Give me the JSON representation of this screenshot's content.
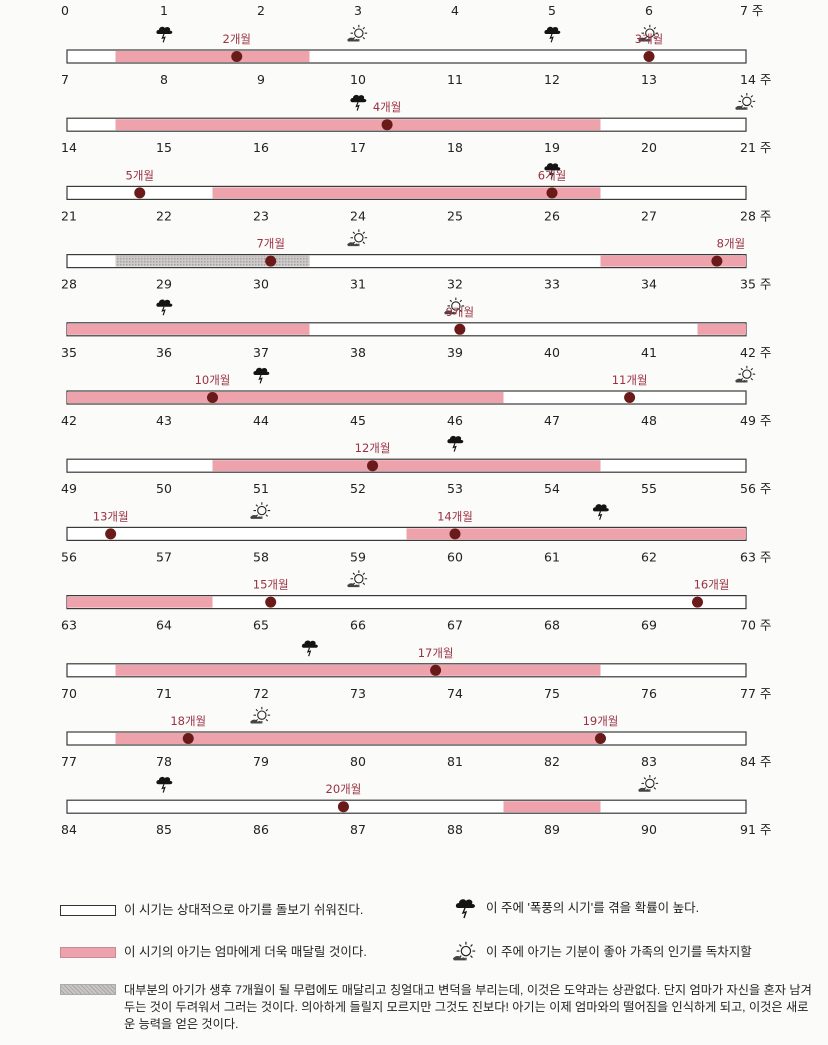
{
  "diagram": {
    "week_unit": "주",
    "rows": [
      {
        "start": 0,
        "end": 7,
        "ticks": [
          "0",
          "1",
          "2",
          "3",
          "4",
          "5",
          "6",
          "7 주"
        ],
        "bar": false,
        "segments": [],
        "markers": [],
        "storms": [],
        "suns": []
      },
      {
        "start": 7,
        "end": 14,
        "ticks": [
          "7",
          "8",
          "9",
          "10",
          "11",
          "12",
          "13",
          "14 주"
        ],
        "bar": true,
        "segments": [
          {
            "from": 7.5,
            "to": 9.5,
            "kind": "clingy"
          }
        ],
        "markers": [
          {
            "week": 8.75,
            "label": "2개월"
          },
          {
            "week": 13,
            "label": "3개월"
          }
        ],
        "storms": [
          8,
          12
        ],
        "suns": [
          10,
          13
        ]
      },
      {
        "start": 14,
        "end": 21,
        "ticks": [
          "14",
          "15",
          "16",
          "17",
          "18",
          "19",
          "20",
          "21 주"
        ],
        "bar": true,
        "segments": [
          {
            "from": 14.5,
            "to": 19.5,
            "kind": "clingy"
          }
        ],
        "markers": [
          {
            "week": 17.3,
            "label": "4개월"
          }
        ],
        "storms": [
          17
        ],
        "suns": [
          21
        ]
      },
      {
        "start": 21,
        "end": 28,
        "ticks": [
          "21",
          "22",
          "23",
          "24",
          "25",
          "26",
          "27",
          "28 주"
        ],
        "bar": true,
        "segments": [
          {
            "from": 22.5,
            "to": 26.5,
            "kind": "clingy"
          }
        ],
        "markers": [
          {
            "week": 21.75,
            "label": "5개월"
          },
          {
            "week": 26,
            "label": "6개월"
          }
        ],
        "storms": [
          26
        ],
        "suns": []
      },
      {
        "start": 28,
        "end": 35,
        "ticks": [
          "28",
          "29",
          "30",
          "31",
          "32",
          "33",
          "34",
          "35 주"
        ],
        "bar": true,
        "segments": [
          {
            "from": 28.5,
            "to": 30.5,
            "kind": "normal-clingy"
          },
          {
            "from": 33.5,
            "to": 35,
            "kind": "clingy"
          }
        ],
        "markers": [
          {
            "week": 30.1,
            "label": "7개월"
          },
          {
            "week": 34.7,
            "label": "8개월"
          }
        ],
        "storms": [],
        "suns": [
          31
        ]
      },
      {
        "start": 35,
        "end": 42,
        "ticks": [
          "35",
          "36",
          "37",
          "38",
          "39",
          "40",
          "41",
          "42 주"
        ],
        "bar": true,
        "segments": [
          {
            "from": 35,
            "to": 37.5,
            "kind": "clingy"
          },
          {
            "from": 41.5,
            "to": 42,
            "kind": "clingy"
          }
        ],
        "markers": [
          {
            "week": 39.05,
            "label": "9개월"
          }
        ],
        "storms": [
          36
        ],
        "suns": [
          39
        ]
      },
      {
        "start": 42,
        "end": 49,
        "ticks": [
          "42",
          "43",
          "44",
          "45",
          "46",
          "47",
          "48",
          "49 주"
        ],
        "bar": true,
        "segments": [
          {
            "from": 42,
            "to": 46.5,
            "kind": "clingy"
          }
        ],
        "markers": [
          {
            "week": 43.5,
            "label": "10개월"
          },
          {
            "week": 47.8,
            "label": "11개월"
          }
        ],
        "storms": [
          44
        ],
        "suns": [
          49
        ]
      },
      {
        "start": 49,
        "end": 56,
        "ticks": [
          "49",
          "50",
          "51",
          "52",
          "53",
          "54",
          "55",
          "56 주"
        ],
        "bar": true,
        "segments": [
          {
            "from": 50.5,
            "to": 54.5,
            "kind": "clingy"
          }
        ],
        "markers": [
          {
            "week": 52.15,
            "label": "12개월"
          }
        ],
        "storms": [
          53
        ],
        "suns": []
      },
      {
        "start": 56,
        "end": 63,
        "ticks": [
          "56",
          "57",
          "58",
          "59",
          "60",
          "61",
          "62",
          "63 주"
        ],
        "bar": true,
        "segments": [
          {
            "from": 59.5,
            "to": 63,
            "kind": "clingy"
          }
        ],
        "markers": [
          {
            "week": 56.45,
            "label": "13개월"
          },
          {
            "week": 60,
            "label": "14개월"
          }
        ],
        "storms": [
          61.5
        ],
        "suns": [
          58
        ]
      },
      {
        "start": 63,
        "end": 70,
        "ticks": [
          "63",
          "64",
          "65",
          "66",
          "67",
          "68",
          "69",
          "70 주"
        ],
        "bar": true,
        "segments": [
          {
            "from": 63,
            "to": 64.5,
            "kind": "clingy"
          }
        ],
        "markers": [
          {
            "week": 65.1,
            "label": "15개월"
          },
          {
            "week": 69.5,
            "label": "16개월"
          }
        ],
        "storms": [],
        "suns": [
          66
        ]
      },
      {
        "start": 70,
        "end": 77,
        "ticks": [
          "70",
          "71",
          "72",
          "73",
          "74",
          "75",
          "76",
          "77 주"
        ],
        "bar": true,
        "segments": [
          {
            "from": 70.5,
            "to": 75.5,
            "kind": "clingy"
          }
        ],
        "markers": [
          {
            "week": 73.8,
            "label": "17개월"
          }
        ],
        "storms": [
          72.5
        ],
        "suns": []
      },
      {
        "start": 77,
        "end": 84,
        "ticks": [
          "77",
          "78",
          "79",
          "80",
          "81",
          "82",
          "83",
          "84 주"
        ],
        "bar": true,
        "segments": [
          {
            "from": 77.5,
            "to": 82.5,
            "kind": "clingy"
          }
        ],
        "markers": [
          {
            "week": 78.25,
            "label": "18개월"
          },
          {
            "week": 82.5,
            "label": "19개월"
          }
        ],
        "storms": [],
        "suns": [
          79
        ]
      },
      {
        "start": 84,
        "end": 91,
        "ticks": [
          "84",
          "85",
          "86",
          "87",
          "88",
          "89",
          "90",
          "91 주"
        ],
        "bar": true,
        "segments": [
          {
            "from": 88.5,
            "to": 89.5,
            "kind": "clingy"
          }
        ],
        "markers": [
          {
            "week": 86.85,
            "label": "20개월"
          }
        ],
        "storms": [
          85
        ],
        "suns": [
          90
        ]
      }
    ],
    "colors": {
      "clingy": "#eea2ac",
      "normal-clingy": "#bdb8b8",
      "marker": "#6b1a1a",
      "marker_label": "#9a3244",
      "bar_border": "#3a3a3a"
    }
  },
  "legend": {
    "easy_text": "이 시기는 상대적으로 아기를 돌보기 쉬워진다.",
    "clingy_text": "이 시기의 아기는 엄마에게 더욱 매달릴 것이다.",
    "storm_text": "이 주에 '폭풍의 시기'를 겪을 확률이 높다.",
    "sun_text": "이 주에 아기는 기분이 좋아 가족의 인기를 독차지할",
    "note_text": "대부분의 아기가 생후 7개월이 될 무렵에도 매달리고 칭얼대고 변덕을 부리는데, 이것은 도약과는 상관없다. 단지 엄마가 자신을 혼자 남겨두는 것이 두려워서 그러는 것이다. 의아하게 들릴지 모르지만 그것도 진보다! 아기는 이제 엄마와의 떨어짐을 인식하게 되고, 이것은 새로운 능력을 얻은 것이다.",
    "icons": [
      "storm-cloud-icon",
      "sun-icon"
    ]
  }
}
